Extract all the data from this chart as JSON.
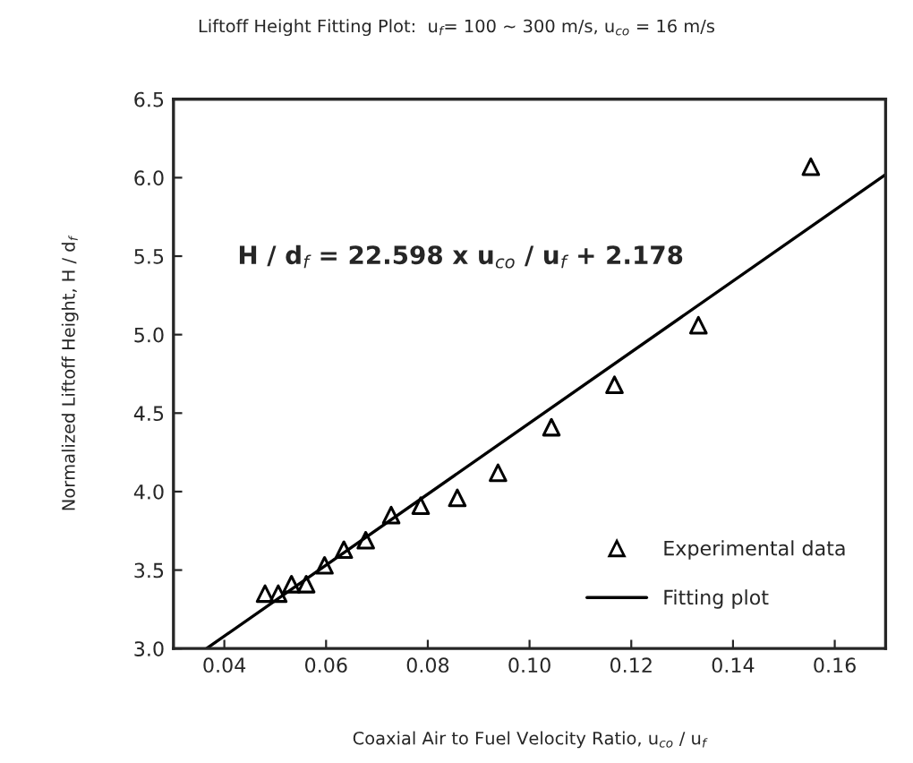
{
  "chart_data": {
    "type": "scatter",
    "title": "Liftoff Height Fitting Plot:  u$_{f}$= 100 ~ 300 m/s, u$_{co}$ = 16 m/s",
    "xlabel": "Coaxial Air to Fuel Velocity Ratio, u$_{co}$ / u$_{f}$",
    "ylabel": "Normalized Liftoff Height, H / d$_{f}$",
    "annotations": [
      "H / d$_{f}$ = 22.598 x u$_{co}$ / u$_{f}$ + 2.178"
    ],
    "series": [
      {
        "name": "Experimental data",
        "marker": "triangle",
        "color": "#000000",
        "x": [
          0.048,
          0.0506,
          0.0532,
          0.0561,
          0.0597,
          0.0635,
          0.0678,
          0.0728,
          0.0786,
          0.0858,
          0.0938,
          0.1043,
          0.1167,
          0.1332,
          0.1553
        ],
        "values": [
          3.35,
          3.35,
          3.41,
          3.41,
          3.53,
          3.63,
          3.69,
          3.85,
          3.91,
          3.96,
          4.12,
          4.41,
          4.68,
          5.06,
          6.07
        ]
      },
      {
        "name": "Fitting plot",
        "type": "line",
        "marker": "none",
        "line_style": "solid",
        "color": "#000000",
        "x": [
          0.0365,
          0.17
        ],
        "values": [
          3.0,
          6.02
        ]
      }
    ],
    "xlim": [
      0.03,
      0.17
    ],
    "xticks": [
      {
        "value": 0.04,
        "label": "0.04"
      },
      {
        "value": 0.06,
        "label": "0.06"
      },
      {
        "value": 0.08,
        "label": "0.08"
      },
      {
        "value": 0.1,
        "label": "0.10"
      },
      {
        "value": 0.12,
        "label": "0.12"
      },
      {
        "value": 0.14,
        "label": "0.14"
      },
      {
        "value": 0.16,
        "label": "0.16"
      }
    ],
    "ylim": [
      3.0,
      6.5
    ],
    "yticks": [
      {
        "value": 3.0,
        "label": "3.0"
      },
      {
        "value": 3.5,
        "label": "3.5"
      },
      {
        "value": 4.0,
        "label": "4.0"
      },
      {
        "value": 4.5,
        "label": "4.5"
      },
      {
        "value": 5.0,
        "label": "5.0"
      },
      {
        "value": 5.5,
        "label": "5.5"
      },
      {
        "value": 6.0,
        "label": "6.0"
      },
      {
        "value": 6.5,
        "label": "6.5"
      }
    ],
    "grid": false,
    "legend": "bottom right"
  }
}
